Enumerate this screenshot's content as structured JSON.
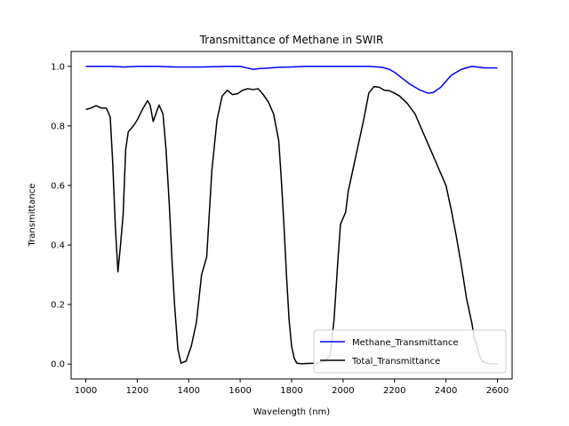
{
  "chart_data": {
    "type": "line",
    "title": "Transmittance of Methane in SWIR",
    "xlabel": "Wavelength (nm)",
    "ylabel": "Transmittance",
    "xlim": [
      943,
      2657
    ],
    "ylim": [
      -0.05,
      1.05
    ],
    "xticks": [
      1000,
      1200,
      1400,
      1600,
      1800,
      2000,
      2200,
      2400,
      2600
    ],
    "yticks": [
      0.0,
      0.2,
      0.4,
      0.6,
      0.8,
      1.0
    ],
    "grid": false,
    "legend": "lower-right",
    "series": [
      {
        "name": "Methane_Transmittance",
        "color": "#0000ff",
        "x": [
          1000,
          1100,
          1150,
          1200,
          1280,
          1350,
          1450,
          1550,
          1600,
          1625,
          1650,
          1680,
          1720,
          1750,
          1800,
          1850,
          1900,
          2000,
          2100,
          2150,
          2180,
          2200,
          2230,
          2260,
          2300,
          2330,
          2350,
          2380,
          2420,
          2460,
          2500,
          2550,
          2600
        ],
        "y": [
          1.0,
          1.0,
          0.998,
          1.0,
          1.0,
          0.998,
          0.998,
          1.0,
          1.0,
          0.995,
          0.99,
          0.993,
          0.995,
          0.997,
          0.998,
          1.0,
          1.0,
          1.0,
          1.0,
          0.997,
          0.99,
          0.98,
          0.96,
          0.94,
          0.92,
          0.91,
          0.912,
          0.93,
          0.97,
          0.99,
          1.0,
          0.995,
          0.995
        ]
      },
      {
        "name": "Total_Transmittance",
        "color": "#000000",
        "x": [
          1000,
          1020,
          1040,
          1060,
          1080,
          1095,
          1105,
          1115,
          1125,
          1135,
          1145,
          1155,
          1165,
          1185,
          1200,
          1220,
          1240,
          1250,
          1262,
          1272,
          1285,
          1300,
          1312,
          1325,
          1335,
          1345,
          1358,
          1370,
          1390,
          1410,
          1430,
          1450,
          1470,
          1490,
          1510,
          1530,
          1550,
          1570,
          1590,
          1610,
          1630,
          1650,
          1670,
          1690,
          1710,
          1730,
          1750,
          1760,
          1770,
          1780,
          1790,
          1800,
          1810,
          1820,
          1840,
          1860,
          1900,
          1930,
          1950,
          1965,
          1980,
          1990,
          2000,
          2010,
          2020,
          2040,
          2060,
          2080,
          2100,
          2120,
          2140,
          2160,
          2180,
          2200,
          2220,
          2250,
          2280,
          2300,
          2320,
          2340,
          2360,
          2380,
          2400,
          2420,
          2440,
          2460,
          2480,
          2500,
          2510,
          2520,
          2530,
          2540,
          2560,
          2580,
          2600
        ],
        "y": [
          0.855,
          0.86,
          0.868,
          0.86,
          0.86,
          0.83,
          0.67,
          0.46,
          0.31,
          0.4,
          0.5,
          0.72,
          0.78,
          0.8,
          0.82,
          0.855,
          0.885,
          0.87,
          0.815,
          0.84,
          0.87,
          0.84,
          0.72,
          0.53,
          0.35,
          0.2,
          0.05,
          0.003,
          0.01,
          0.06,
          0.14,
          0.3,
          0.36,
          0.65,
          0.82,
          0.9,
          0.92,
          0.905,
          0.908,
          0.92,
          0.925,
          0.922,
          0.925,
          0.905,
          0.88,
          0.84,
          0.75,
          0.62,
          0.47,
          0.3,
          0.15,
          0.06,
          0.02,
          0.003,
          0.001,
          0.002,
          0.003,
          0.01,
          0.03,
          0.15,
          0.35,
          0.47,
          0.49,
          0.51,
          0.58,
          0.66,
          0.74,
          0.82,
          0.91,
          0.932,
          0.93,
          0.92,
          0.918,
          0.91,
          0.9,
          0.875,
          0.84,
          0.8,
          0.76,
          0.72,
          0.68,
          0.64,
          0.6,
          0.52,
          0.43,
          0.33,
          0.22,
          0.14,
          0.09,
          0.06,
          0.03,
          0.01,
          0.003,
          0.001,
          0.0
        ]
      }
    ]
  }
}
